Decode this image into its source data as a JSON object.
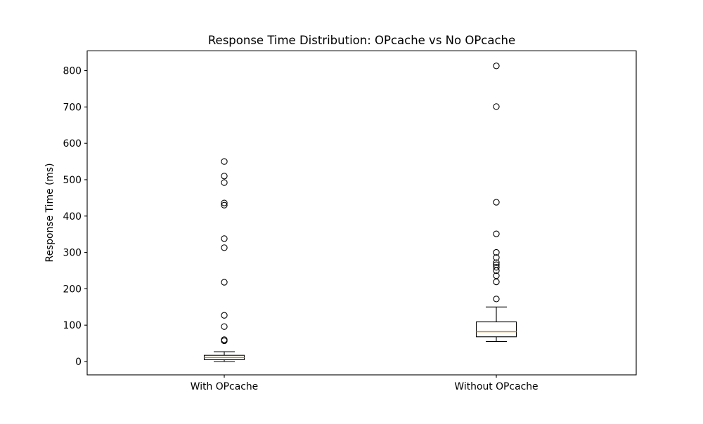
{
  "figure": {
    "background": "#ffffff"
  },
  "chart_data": {
    "type": "boxplot",
    "title": "Response Time Distribution: OPcache vs No OPcache",
    "ylabel": "Response Time (ms)",
    "xlabel": "",
    "categories": [
      "With OPcache",
      "Without OPcache"
    ],
    "yticks": [
      0,
      100,
      200,
      300,
      400,
      500,
      600,
      700,
      800
    ],
    "ylim": [
      -36.7,
      854.2
    ],
    "grid": false,
    "legend": "none",
    "colors": {
      "box_edge": "#000000",
      "median": "#d0891f",
      "whisker": "#000000",
      "flier_edge": "#000000",
      "background": "#ffffff"
    },
    "series": [
      {
        "label": "With OPcache",
        "whisker_low": 0,
        "q1": 5,
        "median": 11,
        "q3": 17,
        "whisker_high": 27,
        "outliers": [
          57,
          60,
          96,
          127,
          218,
          313,
          338,
          430,
          436,
          492,
          510,
          550
        ]
      },
      {
        "label": "Without OPcache",
        "whisker_low": 55,
        "q1": 68,
        "median": 82,
        "q3": 109,
        "whisker_high": 150,
        "outliers": [
          172,
          219,
          236,
          250,
          259,
          266,
          272,
          286,
          300,
          351,
          438,
          701,
          813
        ]
      }
    ]
  }
}
